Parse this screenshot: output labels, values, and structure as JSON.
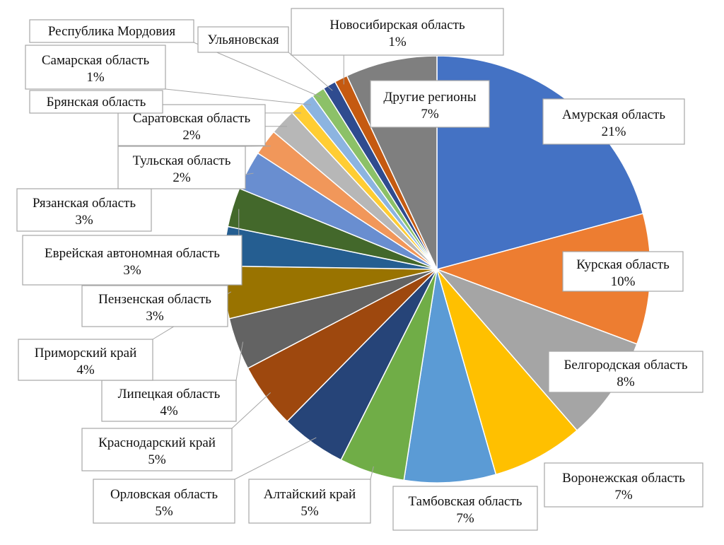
{
  "chart_data": {
    "type": "pie",
    "title": "",
    "slices": [
      {
        "label": "Амурская  область",
        "value": 21,
        "pct_label": "21%",
        "color": "#4472C4"
      },
      {
        "label": "Курская  область",
        "value": 10,
        "pct_label": "10%",
        "color": "#ED7D31"
      },
      {
        "label": "Белгородская  область",
        "value": 8,
        "pct_label": "8%",
        "color": "#A5A5A5"
      },
      {
        "label": "Воронежская  область",
        "value": 7,
        "pct_label": "7%",
        "color": "#FFC000"
      },
      {
        "label": "Тамбовская  область",
        "value": 7,
        "pct_label": "7%",
        "color": "#5B9BD5"
      },
      {
        "label": "Алтайский  край",
        "value": 5,
        "pct_label": "5%",
        "color": "#70AD47"
      },
      {
        "label": "Орловская  область",
        "value": 5,
        "pct_label": "5%",
        "color": "#264478"
      },
      {
        "label": "Краснодарский  край",
        "value": 5,
        "pct_label": "5%",
        "color": "#9E480E"
      },
      {
        "label": "Липецкая  область",
        "value": 4,
        "pct_label": "4%",
        "color": "#636363"
      },
      {
        "label": "Приморский  край",
        "value": 4,
        "pct_label": "4%",
        "color": "#997300"
      },
      {
        "label": "Пензенская  область",
        "value": 3,
        "pct_label": "3%",
        "color": "#255E91"
      },
      {
        "label": "Еврейская  автономная  область",
        "value": 3,
        "pct_label": "3%",
        "color": "#43682B"
      },
      {
        "label": "Рязанская  область",
        "value": 3,
        "pct_label": "3%",
        "color": "#698ED0"
      },
      {
        "label": "Тульская  область",
        "value": 2,
        "pct_label": "2%",
        "color": "#F1975A"
      },
      {
        "label": "Саратовская  область",
        "value": 2,
        "pct_label": "2%",
        "color": "#B7B7B7"
      },
      {
        "label": "Брянская  область",
        "value": 1,
        "pct_label": "",
        "color": "#FFCD33"
      },
      {
        "label": "Самарская  область",
        "value": 1,
        "pct_label": "1%",
        "color": "#8CB4E0"
      },
      {
        "label": "Республика  Мордовия",
        "value": 1,
        "pct_label": "",
        "color": "#8CC168"
      },
      {
        "label": "Ульяновская",
        "value": 1,
        "pct_label": "",
        "color": "#2F4B8F"
      },
      {
        "label": "Новосибирская  область",
        "value": 1,
        "pct_label": "1%",
        "color": "#C55A11"
      },
      {
        "label": "Другие  регионы",
        "value": 7,
        "pct_label": "7%",
        "color": "#7F7F7F"
      }
    ]
  }
}
